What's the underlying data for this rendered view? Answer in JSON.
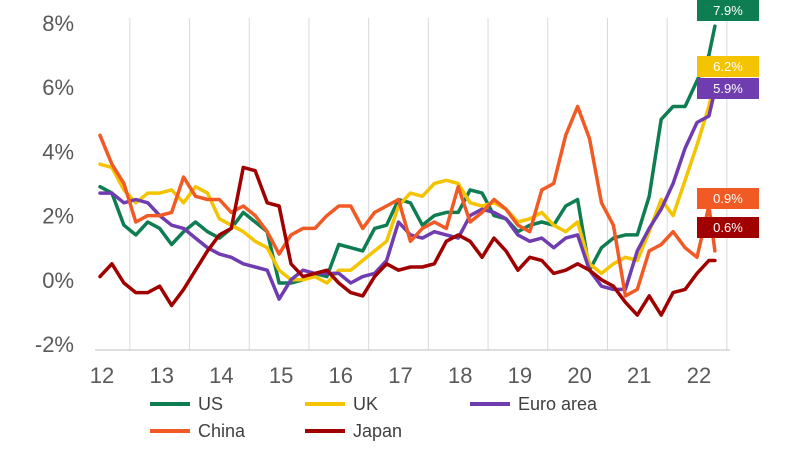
{
  "chart_data": {
    "type": "line",
    "title": "",
    "xlabel": "",
    "ylabel": "",
    "xlim": [
      12,
      22.6
    ],
    "ylim": [
      -2,
      8
    ],
    "x_ticks": [
      12,
      13,
      14,
      15,
      16,
      17,
      18,
      19,
      20,
      21,
      22
    ],
    "x_tick_labels": [
      "12",
      "13",
      "14",
      "15",
      "16",
      "17",
      "18",
      "19",
      "20",
      "21",
      "22"
    ],
    "y_ticks": [
      -2,
      0,
      2,
      4,
      6,
      8
    ],
    "y_tick_labels": [
      "-2%",
      "0%",
      "2%",
      "4%",
      "6%",
      "8%"
    ],
    "grid": "vertical",
    "legend_position": "bottom",
    "series": [
      {
        "name": "US",
        "color": "#0e7d52",
        "end_label": "7.9%",
        "x": [
          12.0,
          12.2,
          12.4,
          12.6,
          12.8,
          13.0,
          13.2,
          13.4,
          13.6,
          13.8,
          14.0,
          14.2,
          14.4,
          14.6,
          14.8,
          15.0,
          15.2,
          15.4,
          15.6,
          15.8,
          16.0,
          16.2,
          16.4,
          16.6,
          16.8,
          17.0,
          17.2,
          17.4,
          17.6,
          17.8,
          18.0,
          18.2,
          18.4,
          18.6,
          18.8,
          19.0,
          19.2,
          19.4,
          19.6,
          19.8,
          20.0,
          20.2,
          20.4,
          20.6,
          20.8,
          21.0,
          21.2,
          21.4,
          21.6,
          21.8,
          22.0,
          22.2,
          22.3
        ],
        "values": [
          2.9,
          2.7,
          1.7,
          1.4,
          1.8,
          1.6,
          1.1,
          1.5,
          1.8,
          1.5,
          1.3,
          1.6,
          2.1,
          1.8,
          1.5,
          -0.1,
          -0.1,
          0.0,
          0.2,
          0.1,
          1.1,
          1.0,
          0.9,
          1.6,
          1.7,
          2.5,
          2.4,
          1.7,
          2.0,
          2.1,
          2.1,
          2.8,
          2.7,
          2.0,
          1.9,
          1.5,
          1.7,
          1.8,
          1.7,
          2.3,
          2.5,
          0.3,
          1.0,
          1.3,
          1.4,
          1.4,
          2.6,
          5.0,
          5.4,
          5.4,
          6.2,
          7.0,
          7.9
        ]
      },
      {
        "name": "UK",
        "color": "#f5c400",
        "end_label": "6.2%",
        "x": [
          12.0,
          12.2,
          12.4,
          12.6,
          12.8,
          13.0,
          13.2,
          13.4,
          13.6,
          13.8,
          14.0,
          14.2,
          14.4,
          14.6,
          14.8,
          15.0,
          15.2,
          15.4,
          15.6,
          15.8,
          16.0,
          16.2,
          16.4,
          16.6,
          16.8,
          17.0,
          17.2,
          17.4,
          17.6,
          17.8,
          18.0,
          18.2,
          18.4,
          18.6,
          18.8,
          19.0,
          19.2,
          19.4,
          19.6,
          19.8,
          20.0,
          20.2,
          20.4,
          20.6,
          20.8,
          21.0,
          21.2,
          21.4,
          21.6,
          21.8,
          22.0,
          22.2,
          22.3
        ],
        "values": [
          3.6,
          3.5,
          2.8,
          2.4,
          2.7,
          2.7,
          2.8,
          2.4,
          2.9,
          2.7,
          1.9,
          1.7,
          1.5,
          1.2,
          1.0,
          0.3,
          0.0,
          0.0,
          0.1,
          -0.1,
          0.3,
          0.3,
          0.6,
          0.9,
          1.2,
          2.3,
          2.7,
          2.6,
          3.0,
          3.1,
          3.0,
          2.4,
          2.3,
          2.4,
          2.2,
          1.8,
          1.9,
          2.1,
          1.7,
          1.5,
          1.8,
          0.5,
          0.2,
          0.5,
          0.7,
          0.6,
          1.5,
          2.5,
          2.0,
          3.1,
          4.2,
          5.4,
          6.2
        ]
      },
      {
        "name": "Euro area",
        "color": "#6f3db0",
        "end_label": "5.9%",
        "x": [
          12.0,
          12.2,
          12.4,
          12.6,
          12.8,
          13.0,
          13.2,
          13.4,
          13.6,
          13.8,
          14.0,
          14.2,
          14.4,
          14.6,
          14.8,
          15.0,
          15.2,
          15.4,
          15.6,
          15.8,
          16.0,
          16.2,
          16.4,
          16.6,
          16.8,
          17.0,
          17.2,
          17.4,
          17.6,
          17.8,
          18.0,
          18.2,
          18.4,
          18.6,
          18.8,
          19.0,
          19.2,
          19.4,
          19.6,
          19.8,
          20.0,
          20.2,
          20.4,
          20.6,
          20.8,
          21.0,
          21.2,
          21.4,
          21.6,
          21.8,
          22.0,
          22.2,
          22.3
        ],
        "values": [
          2.7,
          2.7,
          2.4,
          2.5,
          2.4,
          2.0,
          1.7,
          1.6,
          1.3,
          1.0,
          0.8,
          0.7,
          0.5,
          0.4,
          0.3,
          -0.6,
          0.0,
          0.3,
          0.2,
          0.2,
          0.2,
          -0.1,
          0.1,
          0.2,
          0.6,
          1.8,
          1.4,
          1.3,
          1.5,
          1.4,
          1.3,
          2.0,
          2.2,
          2.1,
          1.9,
          1.4,
          1.2,
          1.3,
          1.0,
          1.3,
          1.4,
          0.3,
          -0.2,
          -0.3,
          -0.3,
          0.9,
          1.6,
          2.2,
          3.0,
          4.1,
          4.9,
          5.1,
          5.9
        ]
      },
      {
        "name": "China",
        "color": "#f15a24",
        "end_label": "0.9%",
        "x": [
          12.0,
          12.2,
          12.4,
          12.6,
          12.8,
          13.0,
          13.2,
          13.4,
          13.6,
          13.8,
          14.0,
          14.2,
          14.4,
          14.6,
          14.8,
          15.0,
          15.2,
          15.4,
          15.6,
          15.8,
          16.0,
          16.2,
          16.4,
          16.6,
          16.8,
          17.0,
          17.2,
          17.4,
          17.6,
          17.8,
          18.0,
          18.2,
          18.4,
          18.6,
          18.8,
          19.0,
          19.2,
          19.4,
          19.6,
          19.8,
          20.0,
          20.2,
          20.4,
          20.6,
          20.8,
          21.0,
          21.2,
          21.4,
          21.6,
          21.8,
          22.0,
          22.2,
          22.3
        ],
        "values": [
          4.5,
          3.6,
          3.0,
          1.8,
          2.0,
          2.0,
          2.1,
          3.2,
          2.6,
          2.5,
          2.5,
          2.1,
          2.3,
          2.0,
          1.5,
          0.8,
          1.4,
          1.6,
          1.6,
          2.0,
          2.3,
          2.3,
          1.6,
          2.1,
          2.3,
          2.5,
          1.2,
          1.6,
          1.8,
          1.6,
          2.9,
          1.8,
          2.1,
          2.5,
          2.2,
          1.7,
          1.5,
          2.8,
          3.0,
          4.5,
          5.4,
          4.4,
          2.4,
          1.7,
          -0.5,
          -0.3,
          0.9,
          1.1,
          1.5,
          1.0,
          0.7,
          2.3,
          0.9
        ]
      },
      {
        "name": "Japan",
        "color": "#a00000",
        "end_label": "0.6%",
        "x": [
          12.0,
          12.2,
          12.4,
          12.6,
          12.8,
          13.0,
          13.2,
          13.4,
          13.6,
          13.8,
          14.0,
          14.2,
          14.4,
          14.6,
          14.8,
          15.0,
          15.2,
          15.4,
          15.6,
          15.8,
          16.0,
          16.2,
          16.4,
          16.6,
          16.8,
          17.0,
          17.2,
          17.4,
          17.6,
          17.8,
          18.0,
          18.2,
          18.4,
          18.6,
          18.8,
          19.0,
          19.2,
          19.4,
          19.6,
          19.8,
          20.0,
          20.2,
          20.4,
          20.6,
          20.8,
          21.0,
          21.2,
          21.4,
          21.6,
          21.8,
          22.0,
          22.2,
          22.3
        ],
        "values": [
          0.1,
          0.5,
          -0.1,
          -0.4,
          -0.4,
          -0.2,
          -0.8,
          -0.3,
          0.3,
          0.9,
          1.4,
          1.6,
          3.5,
          3.4,
          2.4,
          2.3,
          0.5,
          0.1,
          0.2,
          0.3,
          -0.1,
          -0.4,
          -0.5,
          0.1,
          0.5,
          0.3,
          0.4,
          0.4,
          0.5,
          1.2,
          1.4,
          1.2,
          0.7,
          1.3,
          0.9,
          0.3,
          0.7,
          0.6,
          0.2,
          0.3,
          0.5,
          0.3,
          0.0,
          -0.2,
          -0.7,
          -1.1,
          -0.5,
          -1.1,
          -0.4,
          -0.3,
          0.2,
          0.6,
          0.6
        ]
      }
    ]
  }
}
